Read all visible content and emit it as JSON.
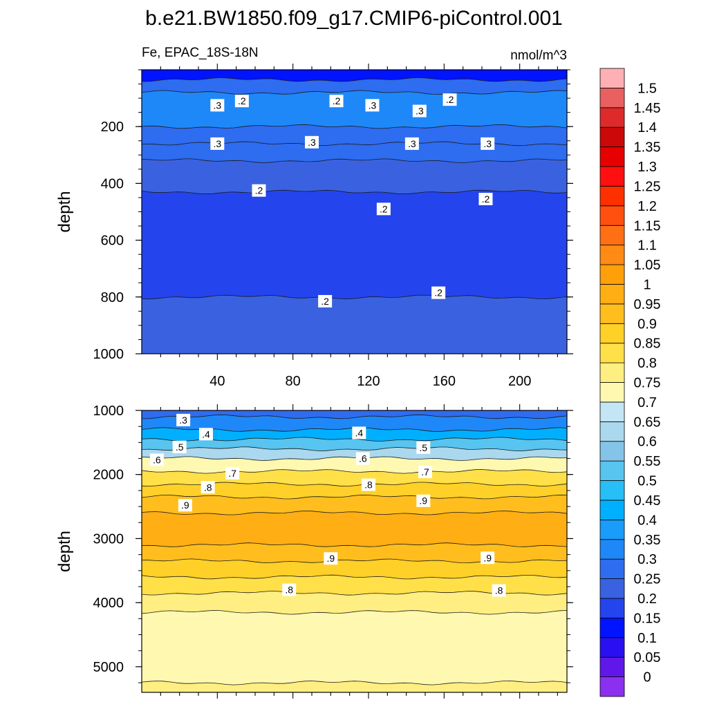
{
  "title": "b.e21.BW1850.f09_g17.CMIP6-piControl.001",
  "subtitle_left": "Fe, EPAC_18S-18N",
  "subtitle_right": "nmol/m^3",
  "chart_data": [
    {
      "type": "heatmap",
      "panel": "upper",
      "xlabel": "",
      "ylabel": "depth",
      "xlim": [
        0,
        225
      ],
      "ylim": [
        1000,
        0
      ],
      "x_ticks": [
        "40",
        "80",
        "120",
        "160",
        "200"
      ],
      "y_ticks": [
        "200",
        "400",
        "600",
        "800",
        "1000"
      ],
      "bands": [
        {
          "depth_top": 0,
          "depth_bottom": 35,
          "value": 0.12
        },
        {
          "depth_top": 35,
          "depth_bottom": 80,
          "value": 0.27
        },
        {
          "depth_top": 80,
          "depth_bottom": 200,
          "value": 0.32
        },
        {
          "depth_top": 200,
          "depth_bottom": 260,
          "value": 0.27
        },
        {
          "depth_top": 260,
          "depth_bottom": 320,
          "value": 0.27
        },
        {
          "depth_top": 320,
          "depth_bottom": 430,
          "value": 0.22
        },
        {
          "depth_top": 430,
          "depth_bottom": 800,
          "value": 0.17
        },
        {
          "depth_top": 800,
          "depth_bottom": 1000,
          "value": 0.22
        }
      ],
      "contour_labels": [
        {
          "x": 40,
          "depth": 125,
          "text": ".3"
        },
        {
          "x": 53,
          "depth": 110,
          "text": ".2"
        },
        {
          "x": 103,
          "depth": 110,
          "text": ".2"
        },
        {
          "x": 122,
          "depth": 125,
          "text": ".3"
        },
        {
          "x": 147,
          "depth": 145,
          "text": ".3"
        },
        {
          "x": 163,
          "depth": 105,
          "text": ".2"
        },
        {
          "x": 40,
          "depth": 260,
          "text": ".3"
        },
        {
          "x": 90,
          "depth": 255,
          "text": ".3"
        },
        {
          "x": 143,
          "depth": 260,
          "text": ".3"
        },
        {
          "x": 183,
          "depth": 260,
          "text": ".3"
        },
        {
          "x": 62,
          "depth": 425,
          "text": ".2"
        },
        {
          "x": 128,
          "depth": 490,
          "text": ".2"
        },
        {
          "x": 182,
          "depth": 455,
          "text": ".2"
        },
        {
          "x": 97,
          "depth": 815,
          "text": ".2"
        },
        {
          "x": 157,
          "depth": 785,
          "text": ".2"
        }
      ]
    },
    {
      "type": "heatmap",
      "panel": "lower",
      "xlabel": "",
      "ylabel": "depth",
      "xlim": [
        0,
        225
      ],
      "ylim": [
        5400,
        1000
      ],
      "y_ticks": [
        "1000",
        "2000",
        "3000",
        "4000",
        "5000"
      ],
      "bands": [
        {
          "depth_top": 1000,
          "depth_bottom": 1100,
          "value": 0.27
        },
        {
          "depth_top": 1100,
          "depth_bottom": 1300,
          "value": 0.32
        },
        {
          "depth_top": 1300,
          "depth_bottom": 1450,
          "value": 0.42
        },
        {
          "depth_top": 1450,
          "depth_bottom": 1600,
          "value": 0.52
        },
        {
          "depth_top": 1600,
          "depth_bottom": 1750,
          "value": 0.62
        },
        {
          "depth_top": 1750,
          "depth_bottom": 1950,
          "value": 0.72
        },
        {
          "depth_top": 1950,
          "depth_bottom": 2150,
          "value": 0.82
        },
        {
          "depth_top": 2150,
          "depth_bottom": 2350,
          "value": 0.87
        },
        {
          "depth_top": 2350,
          "depth_bottom": 2600,
          "value": 0.92
        },
        {
          "depth_top": 2600,
          "depth_bottom": 3100,
          "value": 0.97
        },
        {
          "depth_top": 3100,
          "depth_bottom": 3350,
          "value": 0.92
        },
        {
          "depth_top": 3350,
          "depth_bottom": 3600,
          "value": 0.87
        },
        {
          "depth_top": 3600,
          "depth_bottom": 3850,
          "value": 0.82
        },
        {
          "depth_top": 3850,
          "depth_bottom": 4150,
          "value": 0.77
        },
        {
          "depth_top": 4150,
          "depth_bottom": 5250,
          "value": 0.72
        },
        {
          "depth_top": 5250,
          "depth_bottom": 5400,
          "value": 0.77
        }
      ],
      "contour_labels": [
        {
          "x": 22,
          "depth": 1150,
          "text": ".3"
        },
        {
          "x": 34,
          "depth": 1370,
          "text": ".4"
        },
        {
          "x": 20,
          "depth": 1570,
          "text": ".5"
        },
        {
          "x": 8,
          "depth": 1770,
          "text": ".6"
        },
        {
          "x": 48,
          "depth": 1980,
          "text": ".7"
        },
        {
          "x": 35,
          "depth": 2200,
          "text": ".8"
        },
        {
          "x": 23,
          "depth": 2480,
          "text": ".9"
        },
        {
          "x": 115,
          "depth": 1350,
          "text": ".4"
        },
        {
          "x": 117,
          "depth": 1750,
          "text": ".6"
        },
        {
          "x": 149,
          "depth": 1580,
          "text": ".5"
        },
        {
          "x": 150,
          "depth": 1960,
          "text": ".7"
        },
        {
          "x": 120,
          "depth": 2160,
          "text": ".8"
        },
        {
          "x": 149,
          "depth": 2410,
          "text": ".9"
        },
        {
          "x": 100,
          "depth": 3310,
          "text": ".9"
        },
        {
          "x": 183,
          "depth": 3300,
          "text": ".9"
        },
        {
          "x": 78,
          "depth": 3800,
          "text": ".8"
        },
        {
          "x": 189,
          "depth": 3810,
          "text": ".8"
        }
      ]
    }
  ],
  "colorbar": {
    "labels": [
      "1.5",
      "1.45",
      "1.4",
      "1.35",
      "1.3",
      "1.25",
      "1.2",
      "1.15",
      "1.1",
      "1.05",
      "1",
      "0.95",
      "0.9",
      "0.85",
      "0.8",
      "0.75",
      "0.7",
      "0.65",
      "0.6",
      "0.55",
      "0.5",
      "0.45",
      "0.4",
      "0.35",
      "0.3",
      "0.25",
      "0.2",
      "0.15",
      "0.1",
      "0.05",
      "0"
    ],
    "colors_bottom_to_top": [
      "#8c30f0",
      "#6018e8",
      "#2a10f0",
      "#0014ff",
      "#2444ee",
      "#3a62e0",
      "#2e6cf0",
      "#1e88f8",
      "#1a9cfa",
      "#00b0ff",
      "#28bef6",
      "#58c4f0",
      "#84c4e8",
      "#aad8ef",
      "#c4e6f4",
      "#fff8b0",
      "#ffee82",
      "#ffe048",
      "#ffd028",
      "#ffbe1e",
      "#ffae14",
      "#ffa00a",
      "#ff8a14",
      "#ff7014",
      "#ff5010",
      "#ff3000",
      "#ff1010",
      "#e60000",
      "#cc0808",
      "#dd2a2a",
      "#e86060",
      "#ffb0b4"
    ]
  }
}
